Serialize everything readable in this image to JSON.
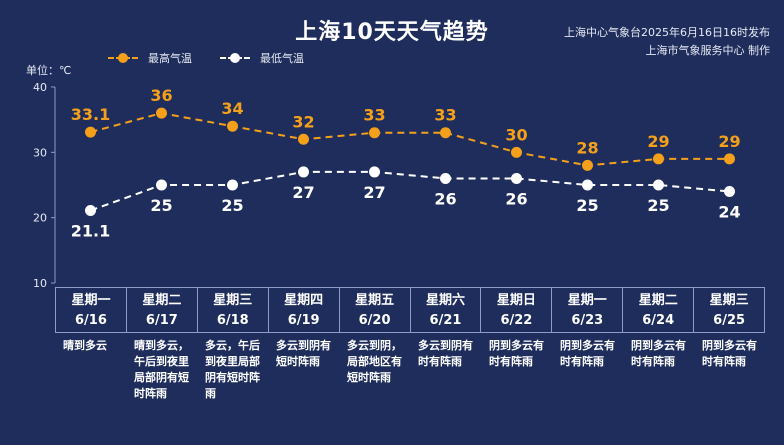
{
  "header": {
    "title": "上海10天天气趋势",
    "source_line1": "上海中心气象台2025年6月16日16时发布",
    "source_line2": "上海市气象服务中心 制作"
  },
  "unit_label": "单位：℃",
  "colors": {
    "high": "#f5a01a",
    "low": "#ffffff",
    "background": "#1f2d5c",
    "grid": "#8e9cc6"
  },
  "chart_data": {
    "type": "line",
    "title": "上海10天天气趋势",
    "ylabel": "单位：℃",
    "ylim": [
      10,
      40
    ],
    "yticks": [
      10,
      20,
      30,
      40
    ],
    "legend_position": "top-left",
    "grid": false,
    "categories": [
      "星期一 6/16",
      "星期二 6/17",
      "星期三 6/18",
      "星期四 6/19",
      "星期五 6/20",
      "星期六 6/21",
      "星期日 6/22",
      "星期一 6/23",
      "星期二 6/24",
      "星期三 6/25"
    ],
    "series": [
      {
        "name": "最高气温",
        "values": [
          33.1,
          36,
          34,
          32,
          33,
          33,
          30,
          28,
          29,
          29
        ]
      },
      {
        "name": "最低气温",
        "values": [
          21.1,
          25,
          25,
          27,
          27,
          26,
          26,
          25,
          25,
          24
        ]
      }
    ]
  },
  "days": [
    {
      "weekday": "星期一",
      "date": "6/16",
      "weather": "晴到多云"
    },
    {
      "weekday": "星期二",
      "date": "6/17",
      "weather": "晴到多云，午后到夜里局部阴有短时阵雨"
    },
    {
      "weekday": "星期三",
      "date": "6/18",
      "weather": "多云，午后到夜里局部阴有短时阵雨"
    },
    {
      "weekday": "星期四",
      "date": "6/19",
      "weather": "多云到阴有短时阵雨"
    },
    {
      "weekday": "星期五",
      "date": "6/20",
      "weather": "多云到阴，局部地区有短时阵雨"
    },
    {
      "weekday": "星期六",
      "date": "6/21",
      "weather": "多云到阴有时有阵雨"
    },
    {
      "weekday": "星期日",
      "date": "6/22",
      "weather": "阴到多云有时有阵雨"
    },
    {
      "weekday": "星期一",
      "date": "6/23",
      "weather": "阴到多云有时有阵雨"
    },
    {
      "weekday": "星期二",
      "date": "6/24",
      "weather": "阴到多云有时有阵雨"
    },
    {
      "weekday": "星期三",
      "date": "6/25",
      "weather": "阴到多云有时有阵雨"
    }
  ]
}
